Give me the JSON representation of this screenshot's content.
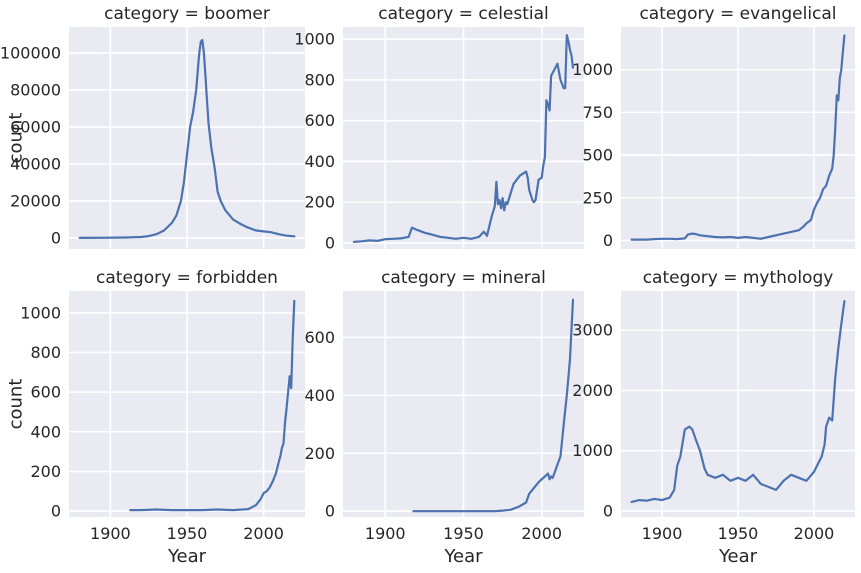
{
  "chart_data": [
    {
      "type": "line",
      "title": "category = boomer",
      "xlabel": "",
      "ylabel": "count",
      "xlim": [
        1873,
        2027
      ],
      "ylim": [
        -6000,
        114000
      ],
      "xticks": [
        1900,
        1950,
        2000
      ],
      "yticks": [
        0,
        20000,
        40000,
        60000,
        80000,
        100000
      ],
      "xtick_labels_visible": false,
      "x": [
        1880,
        1900,
        1910,
        1920,
        1925,
        1930,
        1935,
        1940,
        1943,
        1946,
        1948,
        1950,
        1952,
        1954,
        1956,
        1957,
        1958,
        1959,
        1960,
        1961,
        1962,
        1963,
        1964,
        1966,
        1968,
        1970,
        1972,
        1975,
        1978,
        1980,
        1985,
        1990,
        1995,
        2000,
        2005,
        2010,
        2015,
        2020
      ],
      "y": [
        0,
        100,
        200,
        500,
        1000,
        2000,
        4000,
        8000,
        12000,
        20000,
        30000,
        45000,
        60000,
        68000,
        80000,
        90000,
        100000,
        106000,
        107000,
        100000,
        88000,
        75000,
        62000,
        48000,
        38000,
        25000,
        20000,
        15000,
        12000,
        10000,
        7500,
        5500,
        4000,
        3500,
        3000,
        2000,
        1200,
        800
      ]
    },
    {
      "type": "line",
      "title": "category = celestial",
      "xlabel": "",
      "ylabel": "",
      "xlim": [
        1873,
        2027
      ],
      "ylim": [
        -30,
        1060
      ],
      "xticks": [
        1900,
        1950,
        2000
      ],
      "yticks": [
        0,
        200,
        400,
        600,
        800,
        1000
      ],
      "xtick_labels_visible": false,
      "x": [
        1880,
        1885,
        1890,
        1895,
        1900,
        1905,
        1910,
        1915,
        1917,
        1920,
        1925,
        1930,
        1935,
        1940,
        1945,
        1950,
        1955,
        1960,
        1963,
        1965,
        1968,
        1970,
        1971,
        1972,
        1973,
        1974,
        1975,
        1976,
        1977,
        1978,
        1980,
        1982,
        1984,
        1985,
        1986,
        1988,
        1990,
        1991,
        1992,
        1994,
        1995,
        1996,
        1998,
        2000,
        2001,
        2002,
        2003,
        2004,
        2005,
        2006,
        2008,
        2010,
        2012,
        2013,
        2014,
        2015,
        2016,
        2017,
        2018,
        2019,
        2020
      ],
      "y": [
        5,
        8,
        12,
        10,
        18,
        20,
        22,
        30,
        75,
        65,
        50,
        40,
        30,
        25,
        20,
        25,
        20,
        30,
        55,
        35,
        130,
        180,
        300,
        190,
        210,
        170,
        220,
        160,
        200,
        190,
        240,
        290,
        310,
        320,
        330,
        340,
        350,
        320,
        260,
        210,
        200,
        210,
        310,
        320,
        380,
        420,
        700,
        680,
        650,
        820,
        850,
        880,
        800,
        780,
        760,
        760,
        1020,
        990,
        950,
        920,
        860
      ]
    },
    {
      "type": "line",
      "title": "category = evangelical",
      "xlabel": "",
      "ylabel": "",
      "xlim": [
        1873,
        2027
      ],
      "ylim": [
        -50,
        1250
      ],
      "xticks": [
        1900,
        1950,
        2000
      ],
      "yticks": [
        0,
        250,
        500,
        750,
        1000
      ],
      "xtick_labels_visible": false,
      "x": [
        1880,
        1885,
        1890,
        1895,
        1900,
        1905,
        1910,
        1915,
        1917,
        1920,
        1922,
        1925,
        1930,
        1935,
        1940,
        1945,
        1950,
        1955,
        1960,
        1965,
        1970,
        1975,
        1980,
        1985,
        1990,
        1993,
        1995,
        1998,
        2000,
        2002,
        2004,
        2006,
        2008,
        2010,
        2012,
        2013,
        2014,
        2015,
        2016,
        2017,
        2018,
        2019,
        2020
      ],
      "y": [
        5,
        5,
        5,
        8,
        10,
        10,
        8,
        12,
        35,
        40,
        38,
        30,
        25,
        20,
        18,
        20,
        15,
        20,
        15,
        10,
        20,
        30,
        40,
        50,
        60,
        80,
        100,
        120,
        180,
        220,
        250,
        300,
        320,
        380,
        420,
        500,
        650,
        850,
        820,
        950,
        1000,
        1100,
        1200
      ]
    },
    {
      "type": "line",
      "title": "category = forbidden",
      "xlabel": "Year",
      "ylabel": "count",
      "xlim": [
        1873,
        2027
      ],
      "ylim": [
        -30,
        1110
      ],
      "xticks": [
        1900,
        1950,
        2000
      ],
      "yticks": [
        0,
        200,
        400,
        600,
        800,
        1000
      ],
      "xtick_labels_visible": true,
      "x": [
        1913,
        1920,
        1930,
        1940,
        1950,
        1960,
        1970,
        1980,
        1990,
        1995,
        1998,
        2000,
        2002,
        2004,
        2006,
        2008,
        2010,
        2011,
        2012,
        2013,
        2014,
        2015,
        2016,
        2017,
        2018,
        2019,
        2020
      ],
      "y": [
        5,
        5,
        8,
        5,
        5,
        5,
        8,
        5,
        10,
        30,
        60,
        90,
        100,
        120,
        150,
        190,
        250,
        280,
        320,
        340,
        450,
        520,
        600,
        680,
        620,
        870,
        1060
      ]
    },
    {
      "type": "line",
      "title": "category = mineral",
      "xlabel": "Year",
      "ylabel": "",
      "xlim": [
        1873,
        2027
      ],
      "ylim": [
        -20,
        760
      ],
      "xticks": [
        1900,
        1950,
        2000
      ],
      "yticks": [
        0,
        200,
        400,
        600
      ],
      "xtick_labels_visible": true,
      "x": [
        1918,
        1930,
        1940,
        1950,
        1960,
        1970,
        1975,
        1980,
        1985,
        1990,
        1992,
        1995,
        1998,
        2000,
        2002,
        2004,
        2005,
        2006,
        2007,
        2008,
        2010,
        2012,
        2014,
        2016,
        2018,
        2020
      ],
      "y": [
        0,
        0,
        0,
        0,
        0,
        0,
        2,
        5,
        15,
        30,
        60,
        80,
        100,
        110,
        120,
        130,
        110,
        120,
        115,
        130,
        160,
        190,
        300,
        400,
        520,
        730
      ]
    },
    {
      "type": "line",
      "title": "category = mythology",
      "xlabel": "Year",
      "ylabel": "",
      "xlim": [
        1873,
        2027
      ],
      "ylim": [
        -100,
        3650
      ],
      "xticks": [
        1900,
        1950,
        2000
      ],
      "yticks": [
        0,
        1000,
        2000,
        3000
      ],
      "xtick_labels_visible": true,
      "x": [
        1880,
        1885,
        1890,
        1895,
        1900,
        1905,
        1908,
        1910,
        1912,
        1915,
        1918,
        1920,
        1922,
        1925,
        1928,
        1930,
        1935,
        1940,
        1945,
        1950,
        1955,
        1960,
        1965,
        1970,
        1975,
        1980,
        1985,
        1990,
        1995,
        2000,
        2003,
        2005,
        2007,
        2008,
        2010,
        2012,
        2014,
        2016,
        2018,
        2020
      ],
      "y": [
        150,
        180,
        170,
        200,
        180,
        220,
        350,
        750,
        900,
        1350,
        1400,
        1350,
        1200,
        1000,
        700,
        600,
        550,
        600,
        500,
        550,
        500,
        600,
        450,
        400,
        350,
        500,
        600,
        550,
        500,
        650,
        800,
        900,
        1100,
        1400,
        1550,
        1500,
        2200,
        2700,
        3100,
        3480
      ]
    }
  ]
}
